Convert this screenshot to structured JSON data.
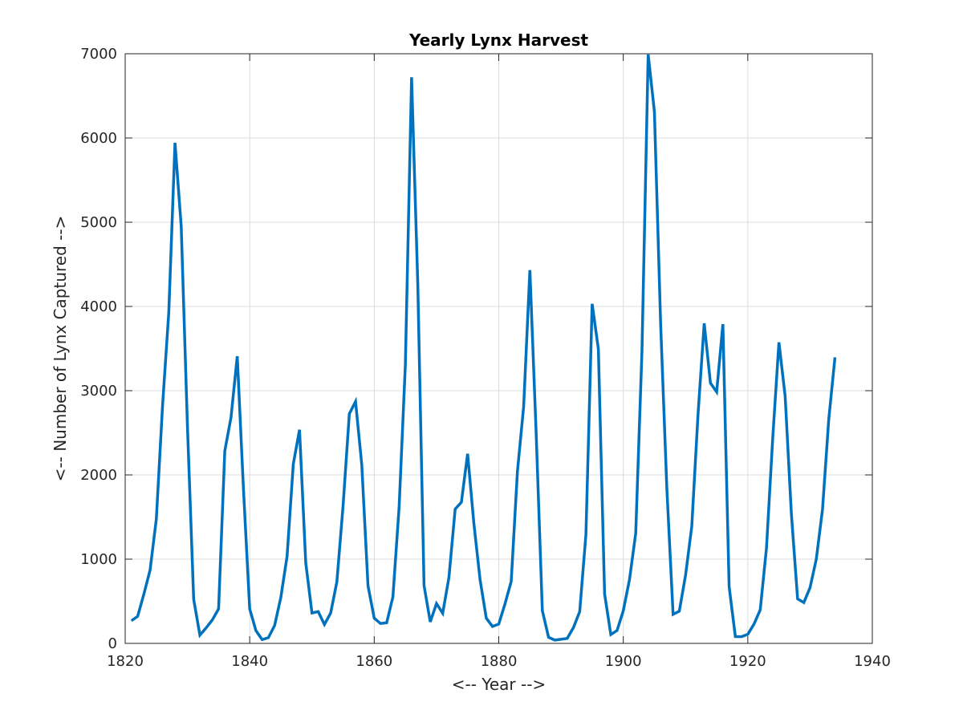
{
  "chart_data": {
    "type": "line",
    "title": "Yearly Lynx Harvest",
    "xlabel": "<-- Year -->",
    "ylabel": "<-- Number of Lynx Captured -->",
    "xlim": [
      1820,
      1940
    ],
    "ylim": [
      0,
      7000
    ],
    "xticks": [
      1820,
      1840,
      1860,
      1880,
      1900,
      1920,
      1940
    ],
    "yticks": [
      0,
      1000,
      2000,
      3000,
      4000,
      5000,
      6000,
      7000
    ],
    "grid": true,
    "line_color": "#0072BD",
    "series": [
      {
        "x": [
          1821,
          1822,
          1823,
          1824,
          1825,
          1826,
          1827,
          1828,
          1829,
          1830,
          1831,
          1832,
          1833,
          1834,
          1835,
          1836,
          1837,
          1838,
          1839,
          1840,
          1841,
          1842,
          1843,
          1844,
          1845,
          1846,
          1847,
          1848,
          1849,
          1850,
          1851,
          1852,
          1853,
          1854,
          1855,
          1856,
          1857,
          1858,
          1859,
          1860,
          1861,
          1862,
          1863,
          1864,
          1865,
          1866,
          1867,
          1868,
          1869,
          1870,
          1871,
          1872,
          1873,
          1874,
          1875,
          1876,
          1877,
          1878,
          1879,
          1880,
          1881,
          1882,
          1883,
          1884,
          1885,
          1886,
          1887,
          1888,
          1889,
          1890,
          1891,
          1892,
          1893,
          1894,
          1895,
          1896,
          1897,
          1898,
          1899,
          1900,
          1901,
          1902,
          1903,
          1904,
          1905,
          1906,
          1907,
          1908,
          1909,
          1910,
          1911,
          1912,
          1913,
          1914,
          1915,
          1916,
          1917,
          1918,
          1919,
          1920,
          1921,
          1922,
          1923,
          1924,
          1925,
          1926,
          1927,
          1928,
          1929,
          1930,
          1931,
          1932,
          1933,
          1934
        ],
        "y": [
          269,
          321,
          585,
          871,
          1475,
          2821,
          3928,
          5943,
          4950,
          2577,
          523,
          98,
          184,
          279,
          409,
          2285,
          2685,
          3409,
          1824,
          409,
          151,
          45,
          68,
          213,
          546,
          1033,
          2129,
          2536,
          957,
          361,
          377,
          225,
          360,
          731,
          1638,
          2725,
          2871,
          2119,
          684,
          299,
          236,
          245,
          552,
          1623,
          3311,
          6721,
          4254,
          687,
          255,
          473,
          358,
          784,
          1594,
          1676,
          2251,
          1426,
          756,
          299,
          201,
          229,
          469,
          736,
          2042,
          2811,
          4431,
          2511,
          389,
          73,
          39,
          49,
          59,
          188,
          377,
          1292,
          4031,
          3495,
          587,
          105,
          153,
          387,
          758,
          1307,
          3465,
          6991,
          6313,
          3794,
          1836,
          345,
          382,
          808,
          1388,
          2713,
          3800,
          3091,
          2985,
          3790,
          674,
          81,
          80,
          108,
          229,
          399,
          1132,
          2432,
          3574,
          2935,
          1537,
          529,
          485,
          662,
          1000,
          1590,
          2657,
          3396
        ]
      }
    ]
  }
}
